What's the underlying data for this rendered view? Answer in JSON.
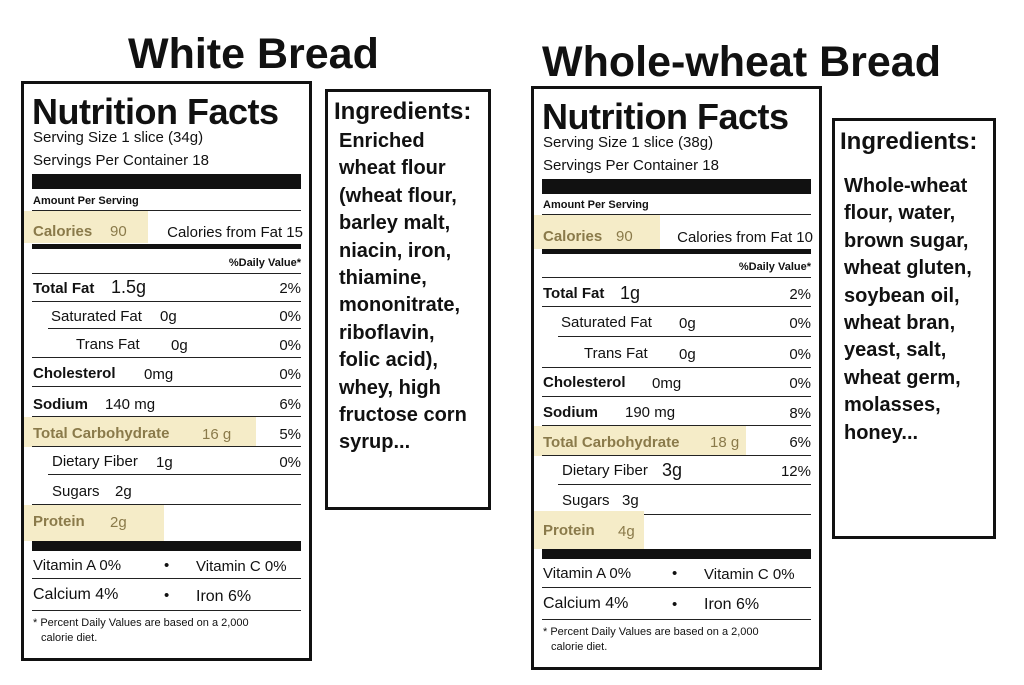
{
  "white": {
    "title": "White Bread",
    "label": {
      "heading": "Nutrition Facts",
      "serving_size": "Serving Size 1 slice (34g)",
      "servings": "Servings Per Container 18",
      "amount_per_serving": "Amount Per Serving",
      "calories_label": "Calories",
      "calories_value": "90",
      "calories_fat": "Calories from Fat 15",
      "daily_value_header": "%Daily Value*",
      "rows": [
        {
          "name": "Total Fat",
          "amount": "1.5g",
          "dv": "2%"
        },
        {
          "name": "Saturated Fat",
          "amount": "0g",
          "dv": "0%"
        },
        {
          "name": "Trans Fat",
          "amount": "0g",
          "dv": "0%"
        },
        {
          "name": "Cholesterol",
          "amount": "0mg",
          "dv": "0%"
        },
        {
          "name": "Sodium",
          "amount": "140 mg",
          "dv": "6%"
        },
        {
          "name": "Total Carbohydrate",
          "amount": "16 g",
          "dv": "5%"
        },
        {
          "name": "Dietary Fiber",
          "amount": "1g",
          "dv": "0%"
        },
        {
          "name": "Sugars",
          "amount": "2g",
          "dv": ""
        },
        {
          "name": "Protein",
          "amount": "2g",
          "dv": ""
        }
      ],
      "vitamin_a": "Vitamin A  0%",
      "vitamin_c": "Vitamin C 0%",
      "calcium": "Calcium  4%",
      "iron": "Iron  6%",
      "bullet": "•",
      "footnote_1": "* Percent Daily Values are based on a 2,000",
      "footnote_2": "calorie diet."
    },
    "ingredients": {
      "heading": "Ingredients:",
      "text": "Enriched\nwheat flour\n(wheat flour,\nbarley malt,\nniacin, iron,\nthiamine,\nmononitrate,\nriboflavin,\nfolic acid),\nwhey, high\nfructose corn\nsyrup..."
    }
  },
  "whole": {
    "title": "Whole-wheat Bread",
    "label": {
      "heading": "Nutrition Facts",
      "serving_size": "Serving Size 1 slice  (38g)",
      "servings": "Servings Per Container 18",
      "amount_per_serving": "Amount Per Serving",
      "calories_label": "Calories",
      "calories_value": "90",
      "calories_fat": "Calories from Fat 10",
      "daily_value_header": "%Daily Value*",
      "rows": [
        {
          "name": "Total Fat",
          "amount": "1g",
          "dv": "2%"
        },
        {
          "name": "Saturated Fat",
          "amount": "0g",
          "dv": "0%"
        },
        {
          "name": "Trans Fat",
          "amount": "0g",
          "dv": "0%"
        },
        {
          "name": "Cholesterol",
          "amount": "0mg",
          "dv": "0%"
        },
        {
          "name": "Sodium",
          "amount": "190 mg",
          "dv": "8%"
        },
        {
          "name": "Total Carbohydrate",
          "amount": "18 g",
          "dv": "6%"
        },
        {
          "name": "Dietary Fiber",
          "amount": "3g",
          "dv": "12%"
        },
        {
          "name": "Sugars",
          "amount": "3g",
          "dv": ""
        },
        {
          "name": "Protein",
          "amount": "4g",
          "dv": ""
        }
      ],
      "vitamin_a": "Vitamin A   0%",
      "vitamin_c": "Vitamin C 0%",
      "calcium": "Calcium   4%",
      "iron": "Iron  6%",
      "bullet": "•",
      "footnote_1": "* Percent Daily Values are based on a 2,000",
      "footnote_2": "calorie diet."
    },
    "ingredients": {
      "heading": "Ingredients:",
      "text": "Whole-wheat\nflour, water,\nbrown sugar,\nwheat gluten,\nsoybean oil,\nwheat bran,\nyeast, salt,\nwheat germ,\nmolasses,\nhoney..."
    }
  },
  "colors": {
    "highlight": "#f5ecc8",
    "highlight_text": "#8a7a4a",
    "border": "#111111"
  }
}
